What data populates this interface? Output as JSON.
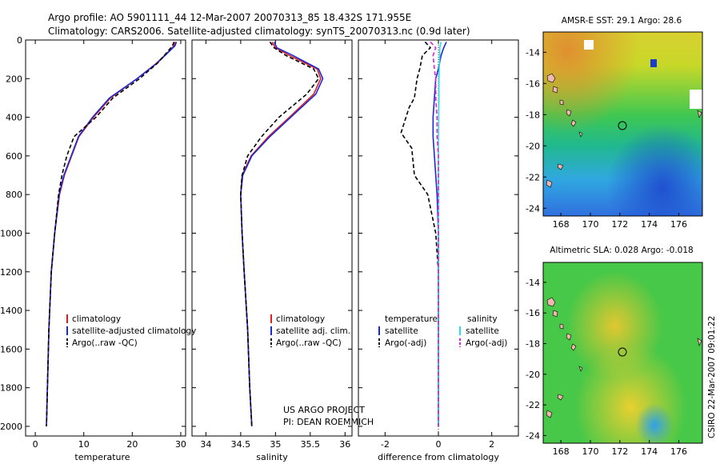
{
  "header": {
    "line1": "Argo profile: AO 5901111_44 12-Mar-2007 20070313_85 18.432S 171.955E",
    "line2": "Climatology: CARS2006. Satellite-adjusted climatology: synTS_20070313.nc (0.9d later)"
  },
  "chart_data": [
    {
      "type": "line",
      "xlabel": "temperature",
      "ylabel": "",
      "xlim": [
        -2,
        31
      ],
      "ylim": [
        2050,
        0
      ],
      "xticks": [
        0,
        10,
        20,
        30
      ],
      "yticks": [
        0,
        200,
        400,
        600,
        800,
        1000,
        1200,
        1400,
        1600,
        1800,
        2000
      ],
      "legend": [
        "climatology",
        "satellite-adjusted climatology",
        "Argo(..raw -QC)"
      ],
      "series": [
        {
          "name": "climatology",
          "color": "#e02020",
          "x": [
            28.9,
            28.6,
            27.5,
            25.0,
            21.0,
            15.5,
            12.0,
            9.0,
            7.5,
            6.0,
            5.0,
            4.0,
            3.3,
            2.8,
            2.5,
            2.3
          ],
          "y": [
            10,
            30,
            60,
            120,
            200,
            300,
            400,
            500,
            600,
            700,
            800,
            1000,
            1200,
            1500,
            1800,
            2000
          ]
        },
        {
          "name": "satellite-adjusted climatology",
          "color": "#1a2ad8",
          "x": [
            29.1,
            28.8,
            27.6,
            25.1,
            21.0,
            15.3,
            11.8,
            8.9,
            7.4,
            5.9,
            4.9,
            4.0,
            3.3,
            2.8,
            2.5,
            2.3
          ],
          "y": [
            10,
            30,
            60,
            120,
            200,
            300,
            400,
            500,
            600,
            700,
            800,
            1000,
            1200,
            1500,
            1800,
            2000
          ]
        },
        {
          "name": "Argo(..raw -QC)",
          "color": "#000000",
          "x": [
            28.6,
            28.3,
            27.3,
            25.2,
            21.5,
            16.0,
            12.5,
            8.0,
            6.5,
            5.5,
            4.8,
            4.0,
            3.3,
            2.8,
            2.5,
            2.3
          ],
          "y": [
            10,
            30,
            60,
            120,
            200,
            300,
            400,
            500,
            600,
            700,
            800,
            1000,
            1200,
            1500,
            1800,
            2000
          ]
        }
      ]
    },
    {
      "type": "line",
      "xlabel": "salinity",
      "ylabel": "",
      "xlim": [
        33.8,
        36.1
      ],
      "ylim": [
        2050,
        0
      ],
      "xticks": [
        34,
        34.5,
        35,
        35.5,
        36
      ],
      "yticks": [
        0,
        200,
        400,
        600,
        800,
        1000,
        1200,
        1400,
        1600,
        1800,
        2000
      ],
      "legend": [
        "climatology",
        "satellite adj. clim.",
        "Argo(..raw -QC)"
      ],
      "series": [
        {
          "name": "climatology",
          "color": "#e02020",
          "x": [
            34.95,
            35.0,
            35.2,
            35.6,
            35.65,
            35.55,
            35.2,
            34.9,
            34.65,
            34.52,
            34.5,
            34.52,
            34.55,
            34.6,
            34.63,
            34.66
          ],
          "y": [
            10,
            40,
            80,
            150,
            200,
            280,
            400,
            500,
            600,
            700,
            800,
            1000,
            1200,
            1500,
            1800,
            2000
          ]
        },
        {
          "name": "satellite adj. clim.",
          "color": "#1a2ad8",
          "x": [
            34.98,
            35.02,
            35.25,
            35.62,
            35.68,
            35.58,
            35.22,
            34.92,
            34.66,
            34.53,
            34.5,
            34.52,
            34.55,
            34.6,
            34.63,
            34.66
          ],
          "y": [
            10,
            40,
            80,
            150,
            200,
            280,
            400,
            500,
            600,
            700,
            800,
            1000,
            1200,
            1500,
            1800,
            2000
          ]
        },
        {
          "name": "Argo(..raw -QC)",
          "color": "#000000",
          "x": [
            34.92,
            34.98,
            35.15,
            35.55,
            35.62,
            35.45,
            35.05,
            34.8,
            34.6,
            34.52,
            34.5,
            34.52,
            34.55,
            34.6,
            34.63,
            34.66
          ],
          "y": [
            10,
            40,
            80,
            150,
            200,
            280,
            400,
            500,
            600,
            700,
            800,
            1000,
            1200,
            1500,
            1800,
            2000
          ]
        }
      ]
    },
    {
      "type": "line",
      "xlabel": "difference from climatology",
      "ylabel": "",
      "xlim": [
        -3,
        3
      ],
      "ylim": [
        2050,
        0
      ],
      "xticks": [
        -2,
        0,
        2
      ],
      "yticks": [
        0,
        200,
        400,
        600,
        800,
        1000,
        1200,
        1400,
        1600,
        1800,
        2000
      ],
      "legend_titles": [
        "temperature",
        "salinity"
      ],
      "legend": [
        "satellite",
        "Argo(-adj)",
        "satellite",
        "Argo(-adj)"
      ],
      "series": [
        {
          "name": "temperature satellite",
          "color": "#1a2ad8",
          "x": [
            0.3,
            0.2,
            0.1,
            0.0,
            -0.1,
            -0.15,
            -0.2,
            -0.2,
            -0.15,
            -0.1,
            -0.05,
            0,
            0,
            0,
            0,
            0
          ],
          "y": [
            10,
            40,
            80,
            150,
            200,
            300,
            400,
            500,
            600,
            700,
            800,
            1000,
            1200,
            1500,
            1800,
            2000
          ]
        },
        {
          "name": "temperature Argo(-adj)",
          "color": "#000000",
          "x": [
            -0.5,
            -0.3,
            -0.6,
            -0.7,
            -0.8,
            -0.9,
            -1.1,
            -1.4,
            -1.0,
            -0.9,
            -0.4,
            -0.1,
            0,
            0,
            0,
            0
          ],
          "y": [
            10,
            40,
            80,
            150,
            200,
            300,
            350,
            480,
            560,
            700,
            800,
            1000,
            1200,
            1500,
            1800,
            2000
          ]
        },
        {
          "name": "salinity satellite",
          "color": "#30d8e8",
          "x": [
            0.1,
            0.05,
            0.05,
            0.03,
            0.02,
            0.02,
            0.01,
            0,
            0,
            0,
            0,
            0,
            0,
            0,
            0,
            0
          ],
          "y": [
            10,
            40,
            80,
            150,
            200,
            300,
            400,
            500,
            600,
            700,
            800,
            1000,
            1200,
            1500,
            1800,
            2000
          ]
        },
        {
          "name": "salinity Argo(-adj)",
          "color": "#e020d8",
          "x": [
            -0.3,
            -0.1,
            -0.2,
            -0.15,
            -0.1,
            -0.1,
            -0.05,
            -0.05,
            0,
            0,
            0,
            0,
            0,
            0,
            0,
            0
          ],
          "y": [
            10,
            40,
            80,
            150,
            200,
            300,
            400,
            500,
            600,
            700,
            800,
            1000,
            1200,
            1500,
            1800,
            2000
          ]
        }
      ],
      "annotations": [
        "US ARGO PROJECT",
        "PI: DEAN ROEMMICH"
      ]
    }
  ],
  "maps": [
    {
      "title": "AMSR-E SST: 29.1 Argo: 28.6",
      "xticks": [
        "168",
        "170",
        "172",
        "174",
        "176"
      ],
      "yticks": [
        "-14",
        "-16",
        "-18",
        "-20",
        "-22",
        "-24"
      ]
    },
    {
      "title": "Altimetric SLA: 0.028 Argo: -0.018",
      "xticks": [
        "168",
        "170",
        "172",
        "174",
        "176"
      ],
      "yticks": [
        "-14",
        "-16",
        "-18",
        "-20",
        "-22",
        "-24"
      ]
    }
  ],
  "side_label": "CSIRO 22-Mar-2007 09:01:22"
}
